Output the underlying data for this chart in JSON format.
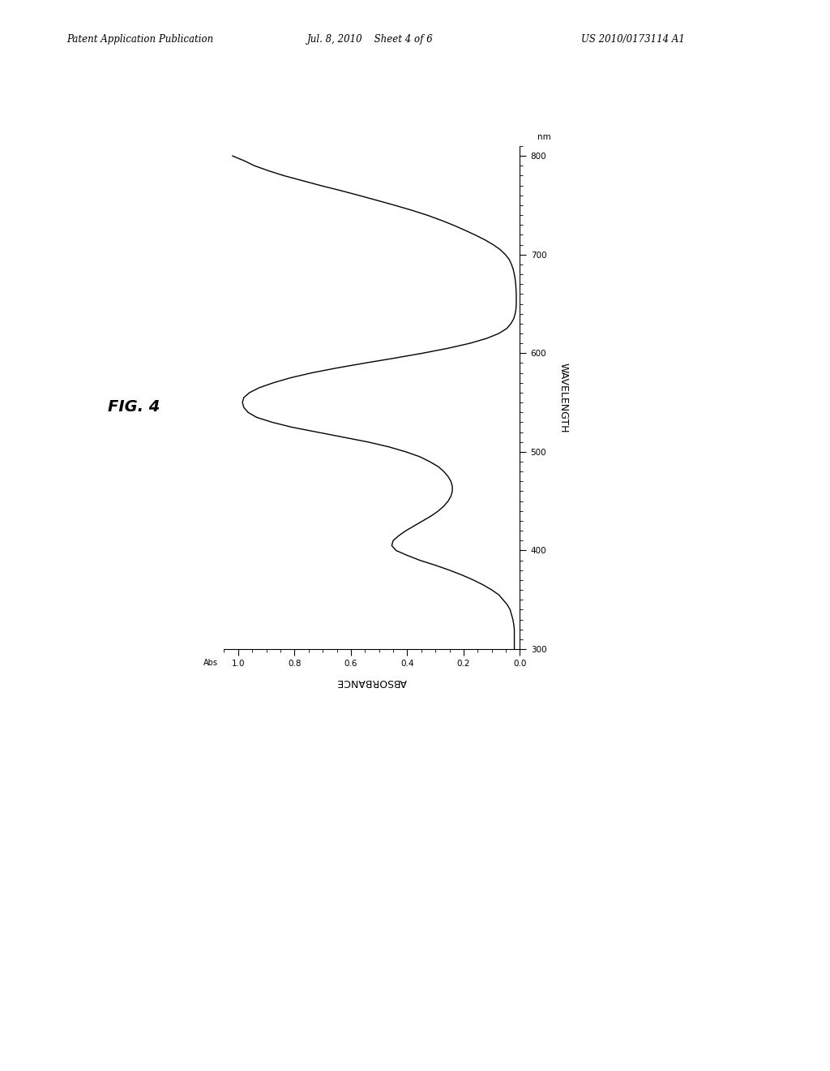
{
  "header_left": "Patent Application Publication",
  "header_center": "Jul. 8, 2010    Sheet 4 of 6",
  "header_right": "US 2010/0173114 A1",
  "fig_label": "FIG. 4",
  "xlabel": "ABSORBANCE",
  "ylabel": "WAVELENGTH",
  "ylabel_unit": "nm",
  "xlim": [
    0.0,
    1.05
  ],
  "ylim": [
    300,
    810
  ],
  "xticks": [
    0.0,
    0.2,
    0.4,
    0.6,
    0.8,
    1.0
  ],
  "yticks": [
    300,
    400,
    500,
    600,
    700,
    800
  ],
  "background_color": "#ffffff",
  "line_color": "#000000",
  "wavelengths": [
    300,
    305,
    310,
    315,
    320,
    325,
    330,
    335,
    340,
    345,
    350,
    355,
    360,
    365,
    370,
    375,
    380,
    385,
    390,
    395,
    400,
    405,
    410,
    415,
    420,
    425,
    430,
    435,
    440,
    445,
    450,
    455,
    460,
    465,
    470,
    475,
    480,
    485,
    490,
    495,
    500,
    505,
    510,
    515,
    520,
    525,
    530,
    535,
    540,
    545,
    550,
    555,
    560,
    565,
    570,
    575,
    580,
    585,
    590,
    595,
    600,
    605,
    610,
    615,
    620,
    625,
    630,
    635,
    640,
    645,
    650,
    655,
    660,
    665,
    670,
    675,
    680,
    685,
    690,
    695,
    700,
    705,
    710,
    715,
    720,
    725,
    730,
    735,
    740,
    745,
    750,
    755,
    760,
    765,
    770,
    775,
    780,
    785,
    790,
    795,
    800
  ],
  "absorbances": [
    0.02,
    0.02,
    0.02,
    0.02,
    0.02,
    0.022,
    0.025,
    0.03,
    0.035,
    0.045,
    0.06,
    0.075,
    0.1,
    0.13,
    0.165,
    0.205,
    0.25,
    0.3,
    0.355,
    0.4,
    0.44,
    0.455,
    0.45,
    0.43,
    0.405,
    0.375,
    0.345,
    0.315,
    0.29,
    0.27,
    0.255,
    0.245,
    0.24,
    0.24,
    0.245,
    0.255,
    0.27,
    0.29,
    0.32,
    0.355,
    0.405,
    0.465,
    0.54,
    0.63,
    0.72,
    0.81,
    0.88,
    0.935,
    0.965,
    0.98,
    0.985,
    0.98,
    0.96,
    0.925,
    0.875,
    0.815,
    0.74,
    0.65,
    0.55,
    0.445,
    0.345,
    0.255,
    0.178,
    0.118,
    0.075,
    0.047,
    0.032,
    0.022,
    0.017,
    0.014,
    0.013,
    0.013,
    0.013,
    0.014,
    0.015,
    0.017,
    0.02,
    0.024,
    0.03,
    0.038,
    0.052,
    0.07,
    0.095,
    0.125,
    0.16,
    0.198,
    0.238,
    0.282,
    0.33,
    0.385,
    0.445,
    0.508,
    0.572,
    0.638,
    0.708,
    0.773,
    0.838,
    0.893,
    0.942,
    0.978,
    1.02
  ]
}
